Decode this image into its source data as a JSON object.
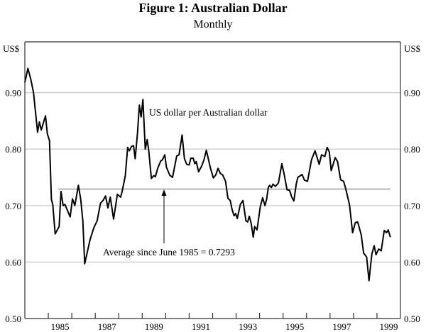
{
  "chart_data": {
    "type": "line",
    "title": "Figure 1: Australian Dollar",
    "subtitle": "Monthly",
    "ylabel_left": "US$",
    "ylabel_right": "US$",
    "xlabel": "",
    "xlim": [
      1984,
      2000
    ],
    "ylim": [
      0.5,
      0.99
    ],
    "yticks": [
      "0.50",
      "0.60",
      "0.70",
      "0.80",
      "0.90"
    ],
    "ytick_values": [
      0.5,
      0.6,
      0.7,
      0.8,
      0.9
    ],
    "xtick_labels": [
      "1985",
      "1987",
      "1989",
      "1991",
      "1993",
      "1995",
      "1997",
      "1999"
    ],
    "grid": true,
    "series": [
      {
        "name": "US dollar per Australian dollar",
        "x": [
          1984.0,
          1984.13,
          1984.25,
          1984.37,
          1984.45,
          1984.54,
          1984.62,
          1984.7,
          1984.88,
          1984.96,
          1985.05,
          1985.13,
          1985.19,
          1985.29,
          1985.46,
          1985.54,
          1985.63,
          1985.71,
          1985.93,
          1986.03,
          1986.13,
          1986.28,
          1986.38,
          1986.47,
          1986.55,
          1986.78,
          1986.94,
          1987.08,
          1987.22,
          1987.33,
          1987.44,
          1987.54,
          1987.64,
          1987.78,
          1987.94,
          1988.08,
          1988.15,
          1988.28,
          1988.38,
          1988.45,
          1988.55,
          1988.63,
          1988.7,
          1988.8,
          1988.88,
          1988.95,
          1989.03,
          1989.13,
          1989.21,
          1989.28,
          1989.39,
          1989.49,
          1989.56,
          1989.66,
          1989.79,
          1989.86,
          1989.96,
          1990.03,
          1990.17,
          1990.29,
          1990.47,
          1990.57,
          1990.7,
          1990.8,
          1990.9,
          1991.0,
          1991.07,
          1991.17,
          1991.24,
          1991.3,
          1991.4,
          1991.53,
          1991.63,
          1991.73,
          1991.81,
          1991.91,
          1992.03,
          1992.13,
          1992.23,
          1992.33,
          1992.43,
          1992.55,
          1992.65,
          1992.75,
          1992.83,
          1992.91,
          1992.98,
          1993.05,
          1993.18,
          1993.29,
          1993.42,
          1993.49,
          1993.56,
          1993.64,
          1993.73,
          1993.79,
          1993.89,
          1994.03,
          1994.13,
          1994.23,
          1994.3,
          1994.37,
          1994.43,
          1994.5,
          1994.57,
          1994.67,
          1994.8,
          1994.95,
          1995.05,
          1995.17,
          1995.28,
          1995.36,
          1995.46,
          1995.56,
          1995.63,
          1995.81,
          1995.91,
          1996.04,
          1996.21,
          1996.36,
          1996.54,
          1996.64,
          1996.78,
          1996.88,
          1996.97,
          1997.05,
          1997.22,
          1997.32,
          1997.45,
          1997.58,
          1997.68,
          1997.83,
          1997.96,
          1998.08,
          1998.18,
          1998.33,
          1998.43,
          1998.56,
          1998.66,
          1998.78,
          1998.88,
          1998.96,
          1999.07,
          1999.18,
          1999.31,
          1999.41,
          1999.48,
          1999.57
        ],
        "y": [
          0.918,
          0.943,
          0.924,
          0.9,
          0.867,
          0.83,
          0.848,
          0.834,
          0.859,
          0.827,
          0.815,
          0.711,
          0.702,
          0.65,
          0.663,
          0.725,
          0.7,
          0.702,
          0.68,
          0.712,
          0.7,
          0.736,
          0.711,
          0.673,
          0.597,
          0.64,
          0.661,
          0.673,
          0.704,
          0.709,
          0.717,
          0.696,
          0.715,
          0.676,
          0.72,
          0.715,
          0.726,
          0.753,
          0.803,
          0.797,
          0.805,
          0.806,
          0.783,
          0.829,
          0.878,
          0.857,
          0.888,
          0.8,
          0.817,
          0.796,
          0.748,
          0.753,
          0.751,
          0.766,
          0.779,
          0.781,
          0.79,
          0.768,
          0.754,
          0.75,
          0.788,
          0.79,
          0.825,
          0.783,
          0.773,
          0.772,
          0.784,
          0.784,
          0.774,
          0.778,
          0.76,
          0.77,
          0.781,
          0.798,
          0.784,
          0.766,
          0.749,
          0.754,
          0.766,
          0.757,
          0.754,
          0.743,
          0.713,
          0.709,
          0.693,
          0.682,
          0.686,
          0.677,
          0.702,
          0.709,
          0.673,
          0.671,
          0.681,
          0.669,
          0.644,
          0.663,
          0.657,
          0.698,
          0.714,
          0.7,
          0.711,
          0.732,
          0.736,
          0.732,
          0.738,
          0.734,
          0.74,
          0.774,
          0.755,
          0.728,
          0.727,
          0.716,
          0.708,
          0.738,
          0.75,
          0.755,
          0.745,
          0.743,
          0.781,
          0.797,
          0.773,
          0.79,
          0.787,
          0.803,
          0.795,
          0.762,
          0.785,
          0.778,
          0.746,
          0.743,
          0.728,
          0.701,
          0.652,
          0.67,
          0.671,
          0.648,
          0.616,
          0.609,
          0.567,
          0.614,
          0.629,
          0.613,
          0.623,
          0.62,
          0.656,
          0.652,
          0.657,
          0.644
        ],
        "color": "#000000"
      }
    ],
    "average_line": {
      "label": "Average since June 1985 = 0.7293",
      "value": 0.7293,
      "x_start": 1985.42,
      "x_end": 1999.57,
      "color": "#999999"
    },
    "annotations": [
      {
        "text": "US dollar per Australian dollar"
      }
    ],
    "gridline_color": "#c8c8c8"
  }
}
